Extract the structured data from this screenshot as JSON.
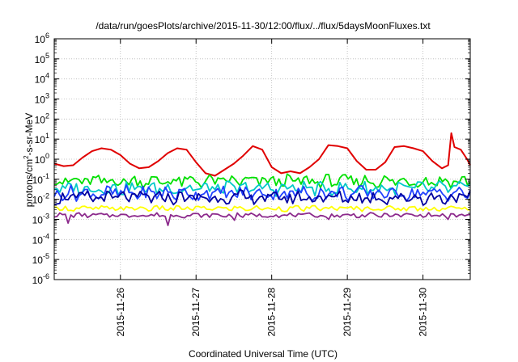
{
  "chart_data": {
    "type": "line",
    "title": "/data/run/goesPlots/archive/2015-11-30/12:00/flux/../flux/5daysMoonFluxes.txt",
    "xlabel": "Coordinated Universal Time (UTC)",
    "ylabel": "protons/cm2-s-sr-MeV",
    "ylabel_parts": {
      "pre": "protons/cm",
      "sup": "2",
      "post": "-s-sr-MeV"
    },
    "yscale": "log",
    "ylim_exponents": [
      -6,
      6
    ],
    "ytick_exponents": [
      -6,
      -5,
      -4,
      -3,
      -2,
      -1,
      0,
      1,
      2,
      3,
      4,
      5,
      6
    ],
    "ytick_base": "10",
    "xlim": [
      "2015-11-25T03:00",
      "2015-11-30T15:00"
    ],
    "xticks": [
      {
        "date": "2015-11-26T00:00",
        "label": "2015-11-26"
      },
      {
        "date": "2015-11-27T00:00",
        "label": "2015-11-27"
      },
      {
        "date": "2015-11-28T00:00",
        "label": "2015-11-28"
      },
      {
        "date": "2015-11-29T00:00",
        "label": "2015-11-29"
      },
      {
        "date": "2015-11-30T00:00",
        "label": "2015-11-30"
      }
    ],
    "grid": true,
    "legend": "none",
    "series": [
      {
        "color": "#e00000",
        "points": [
          [
            "2015-11-25T03:00",
            0.6
          ],
          [
            "2015-11-25T06:00",
            0.45
          ],
          [
            "2015-11-25T09:00",
            0.5
          ],
          [
            "2015-11-25T12:00",
            1.2
          ],
          [
            "2015-11-25T15:00",
            2.5
          ],
          [
            "2015-11-25T18:00",
            3.5
          ],
          [
            "2015-11-25T21:00",
            3.0
          ],
          [
            "2015-11-26T00:00",
            1.6
          ],
          [
            "2015-11-26T03:00",
            0.6
          ],
          [
            "2015-11-26T06:00",
            0.35
          ],
          [
            "2015-11-26T09:00",
            0.4
          ],
          [
            "2015-11-26T12:00",
            0.8
          ],
          [
            "2015-11-26T15:00",
            2.0
          ],
          [
            "2015-11-26T18:00",
            3.5
          ],
          [
            "2015-11-26T21:00",
            3.0
          ],
          [
            "2015-11-27T00:00",
            0.7
          ],
          [
            "2015-11-27T03:00",
            0.2
          ],
          [
            "2015-11-27T06:00",
            0.15
          ],
          [
            "2015-11-27T09:00",
            0.3
          ],
          [
            "2015-11-27T12:00",
            0.6
          ],
          [
            "2015-11-27T15:00",
            1.5
          ],
          [
            "2015-11-27T18:00",
            4.5
          ],
          [
            "2015-11-27T21:00",
            3.0
          ],
          [
            "2015-11-28T00:00",
            0.4
          ],
          [
            "2015-11-28T03:00",
            0.2
          ],
          [
            "2015-11-28T06:00",
            0.25
          ],
          [
            "2015-11-28T09:00",
            0.2
          ],
          [
            "2015-11-28T12:00",
            0.4
          ],
          [
            "2015-11-28T15:00",
            1.0
          ],
          [
            "2015-11-28T18:00",
            5.0
          ],
          [
            "2015-11-28T21:00",
            4.5
          ],
          [
            "2015-11-29T00:00",
            3.5
          ],
          [
            "2015-11-29T03:00",
            0.8
          ],
          [
            "2015-11-29T06:00",
            0.3
          ],
          [
            "2015-11-29T09:00",
            0.3
          ],
          [
            "2015-11-29T12:00",
            0.7
          ],
          [
            "2015-11-29T15:00",
            4.0
          ],
          [
            "2015-11-29T18:00",
            4.5
          ],
          [
            "2015-11-29T21:00",
            3.5
          ],
          [
            "2015-11-30T00:00",
            2.5
          ],
          [
            "2015-11-30T03:00",
            0.8
          ],
          [
            "2015-11-30T06:00",
            0.35
          ],
          [
            "2015-11-30T08:00",
            0.5
          ],
          [
            "2015-11-30T09:00",
            20.0
          ],
          [
            "2015-11-30T10:00",
            4.0
          ],
          [
            "2015-11-30T12:00",
            3.0
          ],
          [
            "2015-11-30T14:00",
            1.0
          ],
          [
            "2015-11-30T15:00",
            0.5
          ]
        ]
      },
      {
        "color": "#00e000",
        "base": 0.08,
        "amp": 0.28
      },
      {
        "color": "#00c8c8",
        "base": 0.035,
        "amp": 0.3
      },
      {
        "color": "#2040ff",
        "base": 0.02,
        "amp": 0.32
      },
      {
        "color": "#0000a0",
        "base": 0.012,
        "amp": 0.3
      },
      {
        "color": "#ffff00",
        "base": 0.0035,
        "amp": 0.12
      },
      {
        "color": "#8c2a8c",
        "base": 0.0016,
        "amp": 0.1,
        "dips": [
          [
            "2015-11-25T07:00",
            0.00065
          ],
          [
            "2015-11-26T15:00",
            0.0005
          ],
          [
            "2015-11-27T12:00",
            0.0009
          ],
          [
            "2015-11-28T18:00",
            0.001
          ],
          [
            "2015-11-30T08:00",
            0.001
          ]
        ]
      }
    ]
  }
}
